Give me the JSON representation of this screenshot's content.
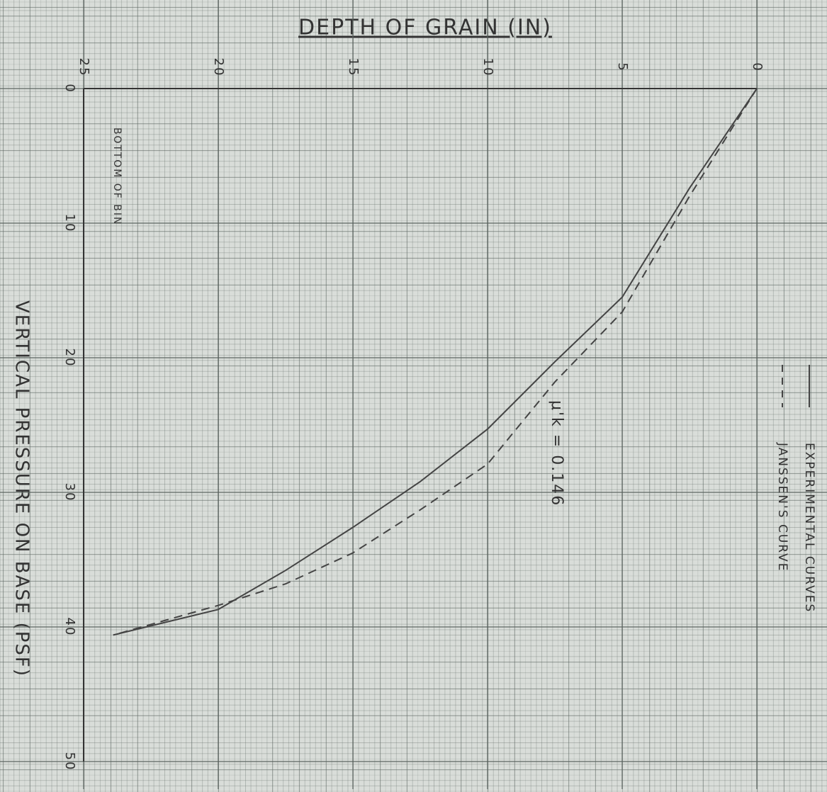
{
  "chart_data": {
    "type": "line",
    "title": "DEPTH OF GRAIN (IN)",
    "y_label": "VERTICAL PRESSURE ON BASE (PSF)",
    "x": [
      0,
      2.5,
      5,
      7.5,
      10,
      12.5,
      15,
      17.5,
      20,
      23.9
    ],
    "series": [
      {
        "name": "EXPERIMENTAL CURVES",
        "color": "#444444",
        "dash": false,
        "values": [
          0,
          7.4,
          15.5,
          20.3,
          25.3,
          29.2,
          32.6,
          35.8,
          38.7,
          40.6
        ]
      },
      {
        "name": "JANSSEN'S CURVE",
        "color": "#444444",
        "dash": true,
        "values": [
          0,
          8,
          16.6,
          21.8,
          27.9,
          31.3,
          34.5,
          36.8,
          38.4,
          40.6
        ]
      }
    ],
    "xlim": [
      25,
      0
    ],
    "xticks": [
      25,
      20,
      15,
      10,
      5,
      0
    ],
    "ylim": [
      0,
      50
    ],
    "yticks": [
      0,
      10,
      20,
      30,
      40,
      50
    ],
    "y_inverted": true,
    "grid": true,
    "annotations": [
      "BOTTOM OF BIN",
      "μ'k = 0.146"
    ]
  }
}
